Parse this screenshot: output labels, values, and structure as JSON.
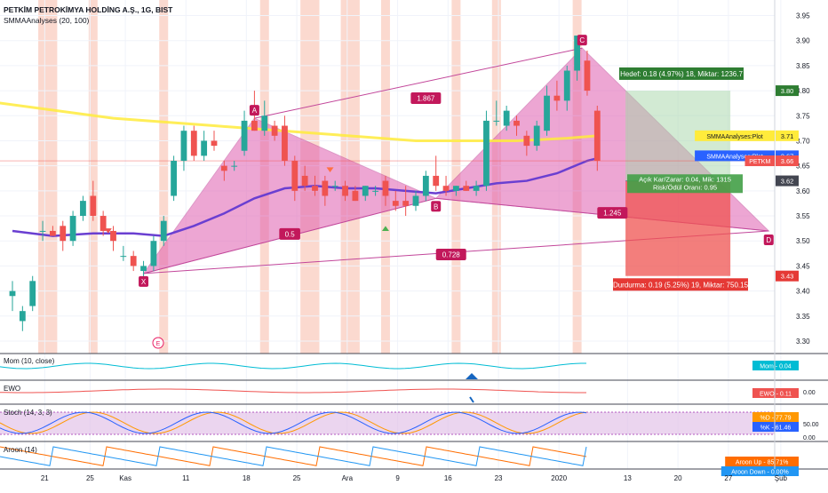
{
  "header": {
    "title": "PETKİM PETROKİMYA HOLDİNG A.Ş., 1G, BIST",
    "indicator": "SMMAAnalyses (20, 100)"
  },
  "colors": {
    "up": "#26a69a",
    "down": "#ef5350",
    "pattern_fill": "#e05fb0",
    "pattern_line": "#c2469a",
    "smma_fast": "#6a3fd1",
    "smma_slow": "#ffeb3b",
    "highlight": "#f8b9a8"
  },
  "chart_data": {
    "type": "candlestick",
    "symbol": "PETKİM PETROKİMYA HOLDİNG A.Ş., 1G, BIST",
    "x_tick_labels": [
      "21",
      "25",
      "Kas",
      "11",
      "18",
      "25",
      "Ara",
      "9",
      "16",
      "23",
      "2020",
      "13",
      "20",
      "27",
      "Şub"
    ],
    "y_tick_labels": [
      "3.95",
      "3.90",
      "3.85",
      "3.80",
      "3.75",
      "3.70",
      "3.65",
      "3.60",
      "3.55",
      "3.50",
      "3.45",
      "3.40",
      "3.35",
      "3.30"
    ],
    "ylim": [
      3.28,
      3.97
    ],
    "candles": [
      {
        "o": 3.39,
        "h": 3.42,
        "l": 3.36,
        "c": 3.4
      },
      {
        "o": 3.34,
        "h": 3.37,
        "l": 3.32,
        "c": 3.36
      },
      {
        "o": 3.37,
        "h": 3.43,
        "l": 3.36,
        "c": 3.42
      },
      {
        "o": 3.52,
        "h": 3.54,
        "l": 3.5,
        "c": 3.52
      },
      {
        "o": 3.52,
        "h": 3.53,
        "l": 3.51,
        "c": 3.51
      },
      {
        "o": 3.53,
        "h": 3.54,
        "l": 3.48,
        "c": 3.5
      },
      {
        "o": 3.5,
        "h": 3.56,
        "l": 3.49,
        "c": 3.55
      },
      {
        "o": 3.55,
        "h": 3.59,
        "l": 3.54,
        "c": 3.58
      },
      {
        "o": 3.59,
        "h": 3.62,
        "l": 3.54,
        "c": 3.55
      },
      {
        "o": 3.55,
        "h": 3.56,
        "l": 3.51,
        "c": 3.52
      },
      {
        "o": 3.52,
        "h": 3.53,
        "l": 3.48,
        "c": 3.5
      },
      {
        "o": 3.47,
        "h": 3.49,
        "l": 3.46,
        "c": 3.47
      },
      {
        "o": 3.47,
        "h": 3.48,
        "l": 3.44,
        "c": 3.45
      },
      {
        "o": 3.44,
        "h": 3.46,
        "l": 3.41,
        "c": 3.45
      },
      {
        "o": 3.45,
        "h": 3.51,
        "l": 3.44,
        "c": 3.5
      },
      {
        "o": 3.5,
        "h": 3.55,
        "l": 3.49,
        "c": 3.54
      },
      {
        "o": 3.59,
        "h": 3.67,
        "l": 3.58,
        "c": 3.66
      },
      {
        "o": 3.66,
        "h": 3.73,
        "l": 3.64,
        "c": 3.72
      },
      {
        "o": 3.72,
        "h": 3.73,
        "l": 3.66,
        "c": 3.67
      },
      {
        "o": 3.67,
        "h": 3.72,
        "l": 3.66,
        "c": 3.7
      },
      {
        "o": 3.7,
        "h": 3.72,
        "l": 3.68,
        "c": 3.69
      },
      {
        "o": 3.65,
        "h": 3.66,
        "l": 3.62,
        "c": 3.64
      },
      {
        "o": 3.65,
        "h": 3.66,
        "l": 3.64,
        "c": 3.65
      },
      {
        "o": 3.68,
        "h": 3.76,
        "l": 3.67,
        "c": 3.74
      },
      {
        "o": 3.74,
        "h": 3.8,
        "l": 3.72,
        "c": 3.72
      },
      {
        "o": 3.72,
        "h": 3.78,
        "l": 3.71,
        "c": 3.75
      },
      {
        "o": 3.73,
        "h": 3.74,
        "l": 3.7,
        "c": 3.71
      },
      {
        "o": 3.73,
        "h": 3.75,
        "l": 3.65,
        "c": 3.66
      },
      {
        "o": 3.66,
        "h": 3.67,
        "l": 3.58,
        "c": 3.6
      },
      {
        "o": 3.63,
        "h": 3.65,
        "l": 3.6,
        "c": 3.61
      },
      {
        "o": 3.61,
        "h": 3.63,
        "l": 3.59,
        "c": 3.6
      },
      {
        "o": 3.62,
        "h": 3.63,
        "l": 3.57,
        "c": 3.59
      },
      {
        "o": 3.61,
        "h": 3.62,
        "l": 3.6,
        "c": 3.61
      },
      {
        "o": 3.61,
        "h": 3.62,
        "l": 3.58,
        "c": 3.59
      },
      {
        "o": 3.6,
        "h": 3.61,
        "l": 3.58,
        "c": 3.58
      },
      {
        "o": 3.59,
        "h": 3.61,
        "l": 3.58,
        "c": 3.61
      },
      {
        "o": 3.6,
        "h": 3.61,
        "l": 3.59,
        "c": 3.6
      },
      {
        "o": 3.62,
        "h": 3.63,
        "l": 3.57,
        "c": 3.59
      },
      {
        "o": 3.58,
        "h": 3.6,
        "l": 3.56,
        "c": 3.57
      },
      {
        "o": 3.58,
        "h": 3.61,
        "l": 3.55,
        "c": 3.57
      },
      {
        "o": 3.57,
        "h": 3.6,
        "l": 3.56,
        "c": 3.59
      },
      {
        "o": 3.59,
        "h": 3.64,
        "l": 3.58,
        "c": 3.63
      },
      {
        "o": 3.63,
        "h": 3.67,
        "l": 3.6,
        "c": 3.61
      },
      {
        "o": 3.61,
        "h": 3.63,
        "l": 3.59,
        "c": 3.6
      },
      {
        "o": 3.6,
        "h": 3.61,
        "l": 3.59,
        "c": 3.61
      },
      {
        "o": 3.61,
        "h": 3.62,
        "l": 3.6,
        "c": 3.6
      },
      {
        "o": 3.6,
        "h": 3.62,
        "l": 3.59,
        "c": 3.61
      },
      {
        "o": 3.61,
        "h": 3.76,
        "l": 3.6,
        "c": 3.74
      },
      {
        "o": 3.74,
        "h": 3.78,
        "l": 3.73,
        "c": 3.74
      },
      {
        "o": 3.73,
        "h": 3.77,
        "l": 3.72,
        "c": 3.76
      },
      {
        "o": 3.74,
        "h": 3.75,
        "l": 3.71,
        "c": 3.73
      },
      {
        "o": 3.71,
        "h": 3.72,
        "l": 3.67,
        "c": 3.69
      },
      {
        "o": 3.69,
        "h": 3.74,
        "l": 3.68,
        "c": 3.73
      },
      {
        "o": 3.72,
        "h": 3.81,
        "l": 3.71,
        "c": 3.79
      },
      {
        "o": 3.79,
        "h": 3.82,
        "l": 3.76,
        "c": 3.78
      },
      {
        "o": 3.78,
        "h": 3.85,
        "l": 3.76,
        "c": 3.84
      },
      {
        "o": 3.84,
        "h": 3.91,
        "l": 3.82,
        "c": 3.91
      },
      {
        "o": 3.86,
        "h": 3.88,
        "l": 3.79,
        "c": 3.8
      },
      {
        "o": 3.76,
        "h": 3.77,
        "l": 3.64,
        "c": 3.66
      }
    ],
    "smma_fast": {
      "name": "SMMAAnalyses:Plot",
      "label": "3.67",
      "x": [
        0,
        4,
        8,
        12,
        15,
        18,
        21,
        24,
        27,
        30,
        33,
        36,
        39,
        42,
        45,
        48,
        51,
        54,
        57,
        58
      ],
      "y": [
        3.52,
        3.51,
        3.515,
        3.515,
        3.51,
        3.53,
        3.555,
        3.585,
        3.605,
        3.61,
        3.605,
        3.605,
        3.6,
        3.595,
        3.605,
        3.615,
        3.62,
        3.635,
        3.66,
        3.665
      ]
    },
    "smma_slow": {
      "name": "SMMAAnalyses:Plot",
      "label": "3.71",
      "x": [
        -3,
        10,
        20,
        30,
        40,
        50,
        55,
        58
      ],
      "y": [
        3.78,
        3.745,
        3.73,
        3.715,
        3.7,
        3.7,
        3.705,
        3.71
      ]
    },
    "pattern": {
      "points": [
        {
          "label": "X",
          "i": 13,
          "v": 3.435
        },
        {
          "label": "A",
          "i": 24,
          "v": 3.745
        },
        {
          "label": "B",
          "i": 42,
          "v": 3.585
        },
        {
          "label": "C",
          "i": 56.5,
          "v": 3.885
        },
        {
          "label": "D",
          "i": 75,
          "v": 3.52
        }
      ],
      "ratios": [
        {
          "label": "1.867",
          "i": 41,
          "v": 3.785
        },
        {
          "label": "0.5",
          "i": 27.5,
          "v": 3.514
        },
        {
          "label": "0.728",
          "i": 43.5,
          "v": 3.473
        },
        {
          "label": "1.245",
          "i": 59.5,
          "v": 3.556
        }
      ],
      "E_label": "E"
    },
    "trade": {
      "target_text": "Hedef: 0.18 (4.97%) 18, Miktar: 1236.7",
      "stop_text": "Durdurma: 0.19 (5.25%) 19, Miktar: 750.15",
      "open_text": "Açık Kar/Zarar: 0.04, Mik: 1315",
      "ratio_text": "Risk/Ödül Oranı: 0.95",
      "entry": 3.62,
      "target": 3.8,
      "stop": 3.43
    },
    "price_labels": [
      {
        "text": "3.80",
        "v": 3.8,
        "kind": "target"
      },
      {
        "text": "3.71",
        "v": 3.71,
        "kind": "slow",
        "name": "SMMAAnalyses:Plot"
      },
      {
        "text": "3.67",
        "v": 3.67,
        "kind": "fast",
        "name": "SMMAAnalyses:Plot"
      },
      {
        "text": "3.66",
        "v": 3.66,
        "kind": "last",
        "name": "PETKM"
      },
      {
        "text": "3.62",
        "v": 3.62,
        "kind": "entry"
      },
      {
        "text": "3.43",
        "v": 3.43,
        "kind": "stop"
      }
    ],
    "panels": [
      {
        "title": "Mom (10, close)",
        "legend": [
          {
            "name": "Mom",
            "value": "0.04",
            "color": "#00bcd4"
          }
        ],
        "ticks": []
      },
      {
        "title": "EWO",
        "legend": [
          {
            "name": "EWO",
            "value": "0.11",
            "color": "#ef5350"
          }
        ],
        "ticks": [
          "0.00"
        ]
      },
      {
        "title": "Stoch (14, 3, 3)",
        "legend": [
          {
            "name": "%D",
            "value": "77.79",
            "color": "#ff9800"
          },
          {
            "name": "%K",
            "value": "61.46",
            "color": "#2962ff"
          }
        ],
        "ticks": [
          "50.00",
          "0.00"
        ]
      },
      {
        "title": "Aroon (14)",
        "legend": [
          {
            "name": "Aroon Up",
            "value": "85.71%",
            "color": "#ff6d00"
          },
          {
            "name": "Aroon Down",
            "value": "0.00%",
            "color": "#2196f3"
          }
        ],
        "ticks": []
      }
    ]
  }
}
